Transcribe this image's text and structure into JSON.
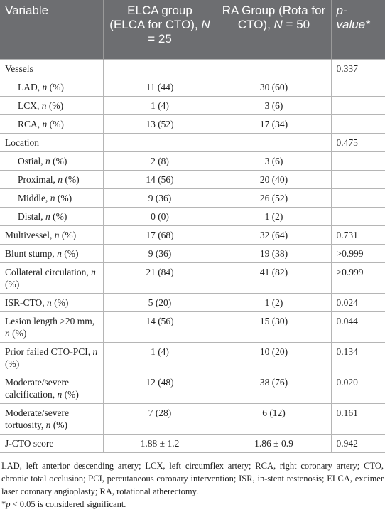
{
  "table": {
    "header": [
      "Variable",
      "ELCA group (ELCA for CTO), N = 25",
      "RA Group (Rota for CTO), N = 50",
      "p-value*"
    ],
    "rows": [
      {
        "label": "Vessels",
        "p_value": "0.337",
        "items": [
          [
            "LAD, n (%)",
            "11 (44)",
            "30 (60)"
          ],
          [
            "LCX, n (%)",
            "1 (4)",
            "3 (6)"
          ],
          [
            "RCA, n (%)",
            "13 (52)",
            "17 (34)"
          ]
        ]
      },
      {
        "label": "Location",
        "p_value": "0.475",
        "items": [
          [
            "Ostial, n (%)",
            "2 (8)",
            "3 (6)"
          ],
          [
            "Proximal, n (%)",
            "14 (56)",
            "20 (40)"
          ],
          [
            "Middle, n (%)",
            "9 (36)",
            "26 (52)"
          ],
          [
            "Distal, n (%)",
            "0 (0)",
            "1 (2)"
          ]
        ]
      },
      {
        "label": "Multivessel, n (%)",
        "elca": "17 (68)",
        "ra": "32 (64)",
        "p_value": "0.731"
      },
      {
        "label": "Blunt stump, n (%)",
        "elca": "9 (36)",
        "ra": "19 (38)",
        "p_value": ">0.999"
      },
      {
        "label": "Collateral circulation, n (%)",
        "elca": "21 (84)",
        "ra": "41 (82)",
        "p_value": ">0.999"
      },
      {
        "label": "ISR-CTO, n (%)",
        "elca": "5 (20)",
        "ra": "1 (2)",
        "p_value": "0.024"
      },
      {
        "label": "Lesion length >20 mm, n (%)",
        "elca": "14 (56)",
        "ra": "15 (30)",
        "p_value": "0.044"
      },
      {
        "label": "Prior failed CTO-PCI, n (%)",
        "elca": "1 (4)",
        "ra": "10 (20)",
        "p_value": "0.134"
      },
      {
        "label": "Moderate/severe calcification, n (%)",
        "elca": "12 (48)",
        "ra": "38 (76)",
        "p_value": "0.020"
      },
      {
        "label": "Moderate/severe tortuosity, n (%)",
        "elca": "7 (28)",
        "ra": "6 (12)",
        "p_value": "0.161"
      },
      {
        "label": "J-CTO score",
        "elca": "1.88 ± 1.2",
        "ra": "1.86 ± 0.9",
        "p_value": "0.942"
      }
    ],
    "footnotes": [
      "LAD, left anterior descending artery; LCX, left circumflex artery; RCA, right coronary artery; CTO, chronic total occlusion; PCI, percutaneous coronary intervention; ISR, in-stent restenosis; ELCA, excimer laser coronary angioplasty; RA, rotational atherectomy.",
      "*p < 0.05 is considered significant."
    ]
  }
}
